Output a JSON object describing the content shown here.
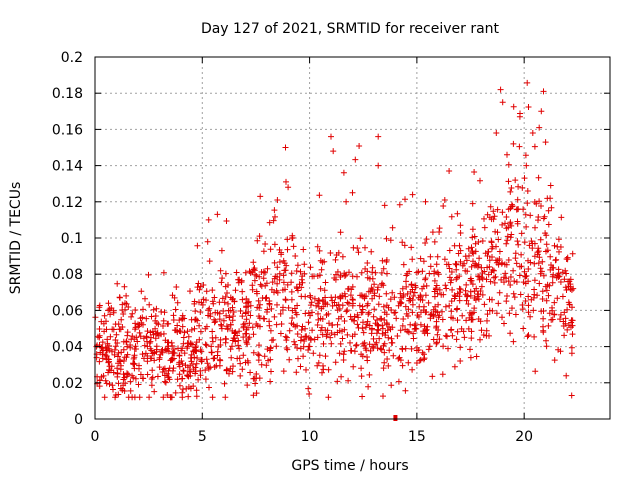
{
  "chart_data": {
    "type": "scatter",
    "title": "Day 127 of 2021, SRMTID for receiver rant",
    "xlabel": "GPS time / hours",
    "ylabel": "SRMTID / TECUs",
    "xlim": [
      0,
      24
    ],
    "ylim": [
      0,
      0.2
    ],
    "xticks": [
      "0",
      "5",
      "10",
      "15",
      "20"
    ],
    "xtick_values": [
      0,
      5,
      10,
      15,
      20
    ],
    "yticks": [
      "0",
      "0.02",
      "0.04",
      "0.06",
      "0.08",
      "0.1",
      "0.12",
      "0.14",
      "0.16",
      "0.18",
      "0.2"
    ],
    "ytick_values": [
      0,
      0.02,
      0.04,
      0.06,
      0.08,
      0.1,
      0.12,
      0.14,
      0.16,
      0.18,
      0.2
    ],
    "grid": true,
    "marker": "plus",
    "color": "#e00000",
    "x_end": 22.3,
    "baseline_marker": {
      "x": 14.0,
      "y": 0.0
    },
    "trend": [
      [
        0,
        0.038
      ],
      [
        1,
        0.036
      ],
      [
        2,
        0.037
      ],
      [
        3,
        0.038
      ],
      [
        4,
        0.033
      ],
      [
        5,
        0.048
      ],
      [
        6,
        0.052
      ],
      [
        7,
        0.053
      ],
      [
        8,
        0.062
      ],
      [
        9,
        0.072
      ],
      [
        10,
        0.055
      ],
      [
        11,
        0.06
      ],
      [
        12,
        0.062
      ],
      [
        13,
        0.056
      ],
      [
        14,
        0.056
      ],
      [
        15,
        0.058
      ],
      [
        16,
        0.066
      ],
      [
        17,
        0.07
      ],
      [
        18,
        0.075
      ],
      [
        19,
        0.09
      ],
      [
        20,
        0.093
      ],
      [
        21,
        0.08
      ],
      [
        22,
        0.058
      ]
    ],
    "outliers": [
      [
        18.9,
        0.182
      ],
      [
        19.0,
        0.175
      ],
      [
        20.9,
        0.181
      ],
      [
        20.8,
        0.17
      ],
      [
        19.8,
        0.167
      ],
      [
        11.0,
        0.156
      ],
      [
        13.2,
        0.156
      ],
      [
        11.1,
        0.148
      ],
      [
        13.2,
        0.14
      ],
      [
        16.5,
        0.137
      ],
      [
        11.6,
        0.136
      ],
      [
        19.5,
        0.152
      ],
      [
        20.4,
        0.158
      ],
      [
        8.9,
        0.131
      ],
      [
        9.0,
        0.128
      ],
      [
        12.0,
        0.125
      ],
      [
        11.7,
        0.12
      ],
      [
        14.8,
        0.124
      ],
      [
        15.4,
        0.12
      ],
      [
        16.3,
        0.121
      ],
      [
        5.3,
        0.11
      ],
      [
        7.7,
        0.123
      ],
      [
        8.5,
        0.121
      ],
      [
        13.5,
        0.118
      ],
      [
        17.6,
        0.119
      ],
      [
        21.0,
        0.153
      ],
      [
        20.1,
        0.14
      ],
      [
        18.7,
        0.158
      ],
      [
        19.2,
        0.146
      ],
      [
        20.7,
        0.161
      ]
    ]
  }
}
